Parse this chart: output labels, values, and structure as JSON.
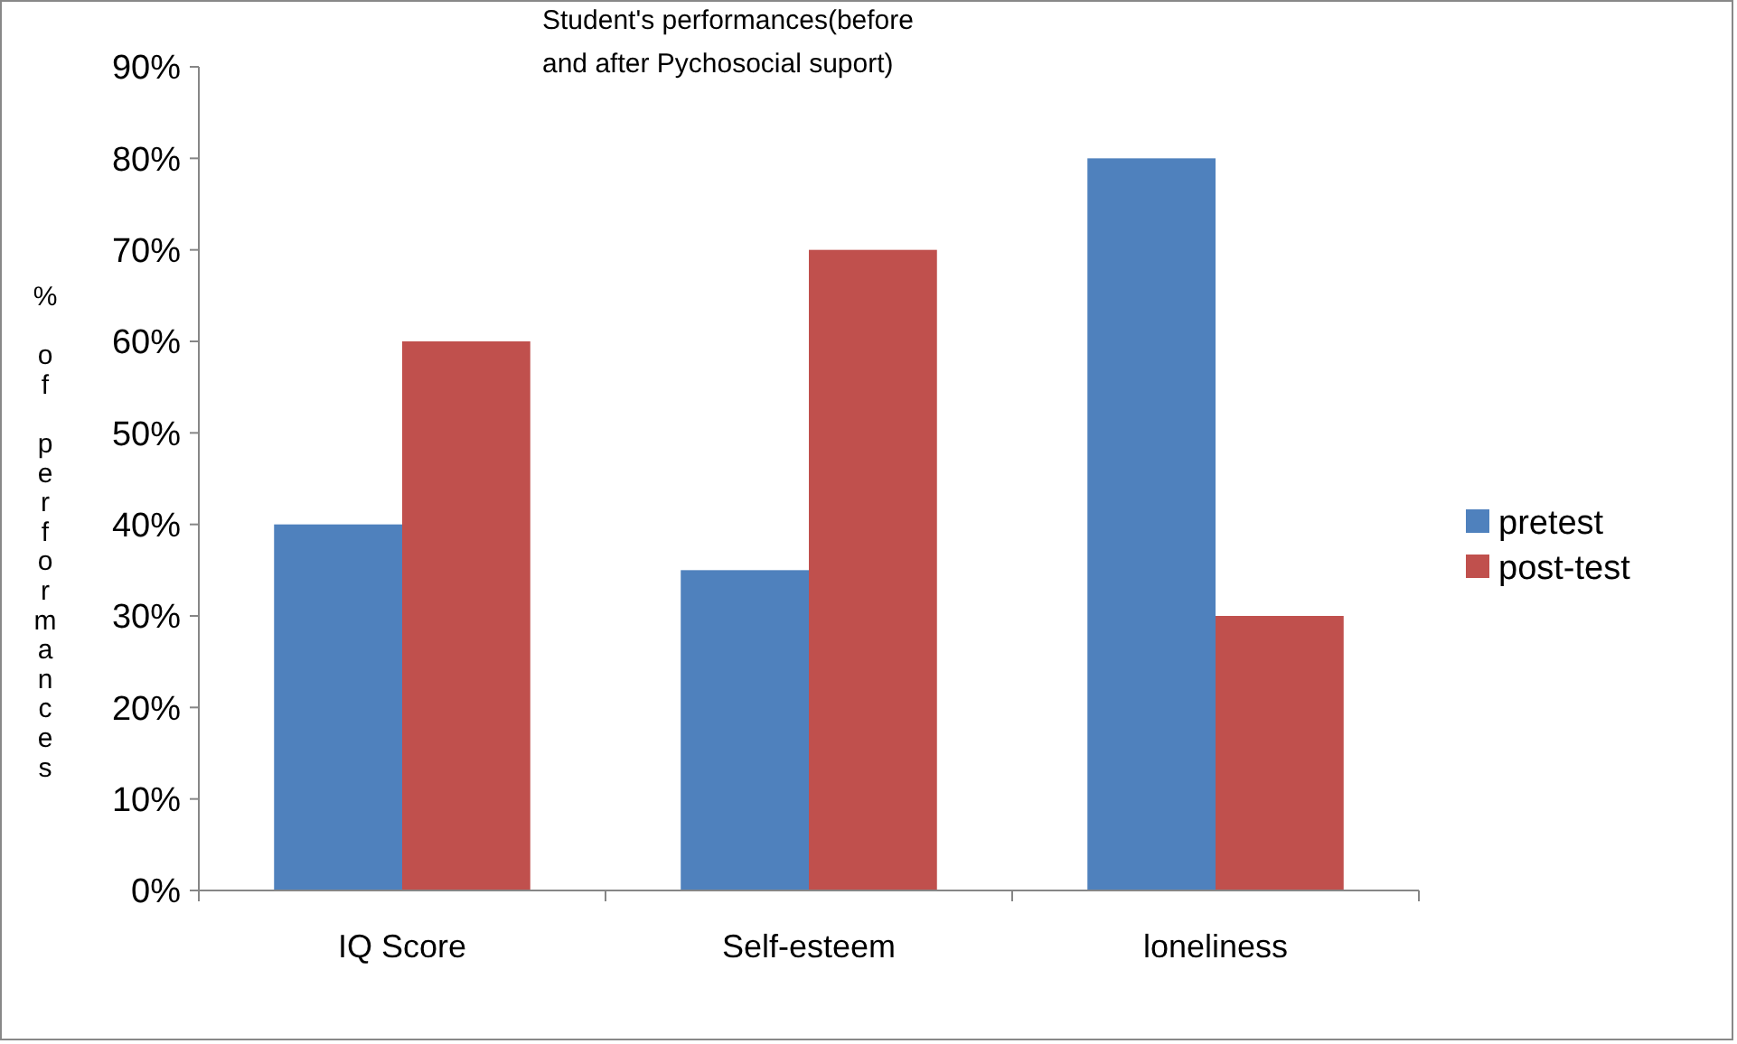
{
  "chart_data": {
    "type": "bar",
    "title": "Student's performances(before and after Pychosocial suport)",
    "ylabel": "% of performances",
    "categories": [
      "IQ Score",
      "Self-esteem",
      "loneliness"
    ],
    "series": [
      {
        "name": "pretest",
        "color": "#4f81bd",
        "values": [
          40,
          35,
          80
        ]
      },
      {
        "name": "post-test",
        "color": "#c0504d",
        "values": [
          60,
          70,
          30
        ]
      }
    ],
    "ylim": [
      0,
      90
    ],
    "yticks": [
      {
        "value": 0,
        "label": "0%"
      },
      {
        "value": 10,
        "label": "10%"
      },
      {
        "value": 20,
        "label": "20%"
      },
      {
        "value": 30,
        "label": "30%"
      },
      {
        "value": 40,
        "label": "40%"
      },
      {
        "value": 50,
        "label": "50%"
      },
      {
        "value": 60,
        "label": "60%"
      },
      {
        "value": 70,
        "label": "70%"
      },
      {
        "value": 80,
        "label": "80%"
      },
      {
        "value": 90,
        "label": "90%"
      }
    ],
    "grid": false,
    "legend": "right"
  }
}
